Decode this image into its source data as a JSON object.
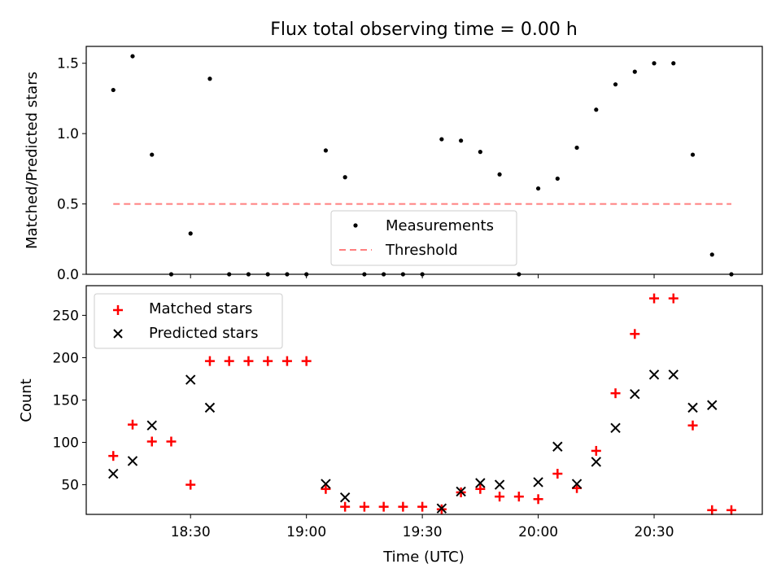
{
  "chart_data": [
    {
      "type": "scatter",
      "title": "Flux total observing time = 0.00 h",
      "xlabel": "",
      "ylabel": "Matched/Predicted stars",
      "ylim": [
        0,
        1.62
      ],
      "yticks": [
        "0.0",
        "0.5",
        "1.0",
        "1.5"
      ],
      "legend_position": "lower-center",
      "x": [
        "18:10",
        "18:15",
        "18:20",
        "18:25",
        "18:30",
        "18:35",
        "18:40",
        "18:45",
        "18:50",
        "18:55",
        "19:00",
        "19:05",
        "19:10",
        "19:15",
        "19:20",
        "19:25",
        "19:30",
        "19:35",
        "19:40",
        "19:45",
        "19:50",
        "19:55",
        "20:00",
        "20:05",
        "20:10",
        "20:15",
        "20:20",
        "20:25",
        "20:30",
        "20:35",
        "20:40",
        "20:45",
        "20:50"
      ],
      "series": [
        {
          "name": "Measurements",
          "marker": "dot",
          "color": "#000000",
          "values": [
            1.31,
            1.55,
            0.85,
            0.0,
            0.29,
            1.39,
            0.0,
            0.0,
            0.0,
            0.0,
            0.0,
            0.88,
            0.69,
            0.0,
            0.0,
            0.0,
            0.0,
            0.96,
            0.95,
            0.87,
            0.71,
            0.0,
            0.61,
            0.68,
            0.9,
            1.17,
            1.35,
            1.44,
            1.5,
            1.5,
            0.85,
            0.14,
            0.0
          ]
        },
        {
          "name": "Threshold",
          "marker": "dashed-line",
          "color": "#ff7f7f",
          "x_range": [
            "18:10",
            "20:50"
          ],
          "value": 0.5
        }
      ]
    },
    {
      "type": "scatter",
      "xlabel": "Time (UTC)",
      "ylabel": "Count",
      "ylim": [
        15,
        285
      ],
      "yticks": [
        "50",
        "100",
        "150",
        "200",
        "250"
      ],
      "xticks": [
        "18:30",
        "19:00",
        "19:30",
        "20:00",
        "20:30"
      ],
      "xlim": [
        "18:03",
        "20:58"
      ],
      "legend_position": "top-left",
      "series": [
        {
          "name": "Matched stars",
          "marker": "plus",
          "color": "#ff0000",
          "x": [
            "18:10",
            "18:15",
            "18:20",
            "18:25",
            "18:30",
            "18:35",
            "18:40",
            "18:45",
            "18:50",
            "18:55",
            "19:00",
            "19:05",
            "19:10",
            "19:15",
            "19:20",
            "19:25",
            "19:30",
            "19:35",
            "19:40",
            "19:45",
            "19:50",
            "19:55",
            "20:00",
            "20:05",
            "20:10",
            "20:15",
            "20:20",
            "20:25",
            "20:30",
            "20:35",
            "20:40",
            "20:45",
            "20:50"
          ],
          "values": [
            84,
            121,
            101,
            101,
            50,
            196,
            196,
            196,
            196,
            196,
            196,
            45,
            24,
            24,
            24,
            24,
            24,
            21,
            41,
            45,
            36,
            36,
            33,
            63,
            46,
            90,
            158,
            228,
            270,
            270,
            120,
            20,
            20
          ]
        },
        {
          "name": "Predicted stars",
          "marker": "x",
          "color": "#000000",
          "x": [
            "18:10",
            "18:15",
            "18:20",
            "18:30",
            "18:35",
            "19:05",
            "19:10",
            "19:35",
            "19:40",
            "19:45",
            "19:50",
            "20:00",
            "20:05",
            "20:10",
            "20:15",
            "20:20",
            "20:25",
            "20:30",
            "20:35",
            "20:40",
            "20:45"
          ],
          "values": [
            63,
            78,
            120,
            174,
            141,
            51,
            35,
            22,
            42,
            52,
            50,
            53,
            95,
            51,
            77,
            117,
            157,
            180,
            180,
            141,
            144
          ]
        }
      ]
    }
  ]
}
